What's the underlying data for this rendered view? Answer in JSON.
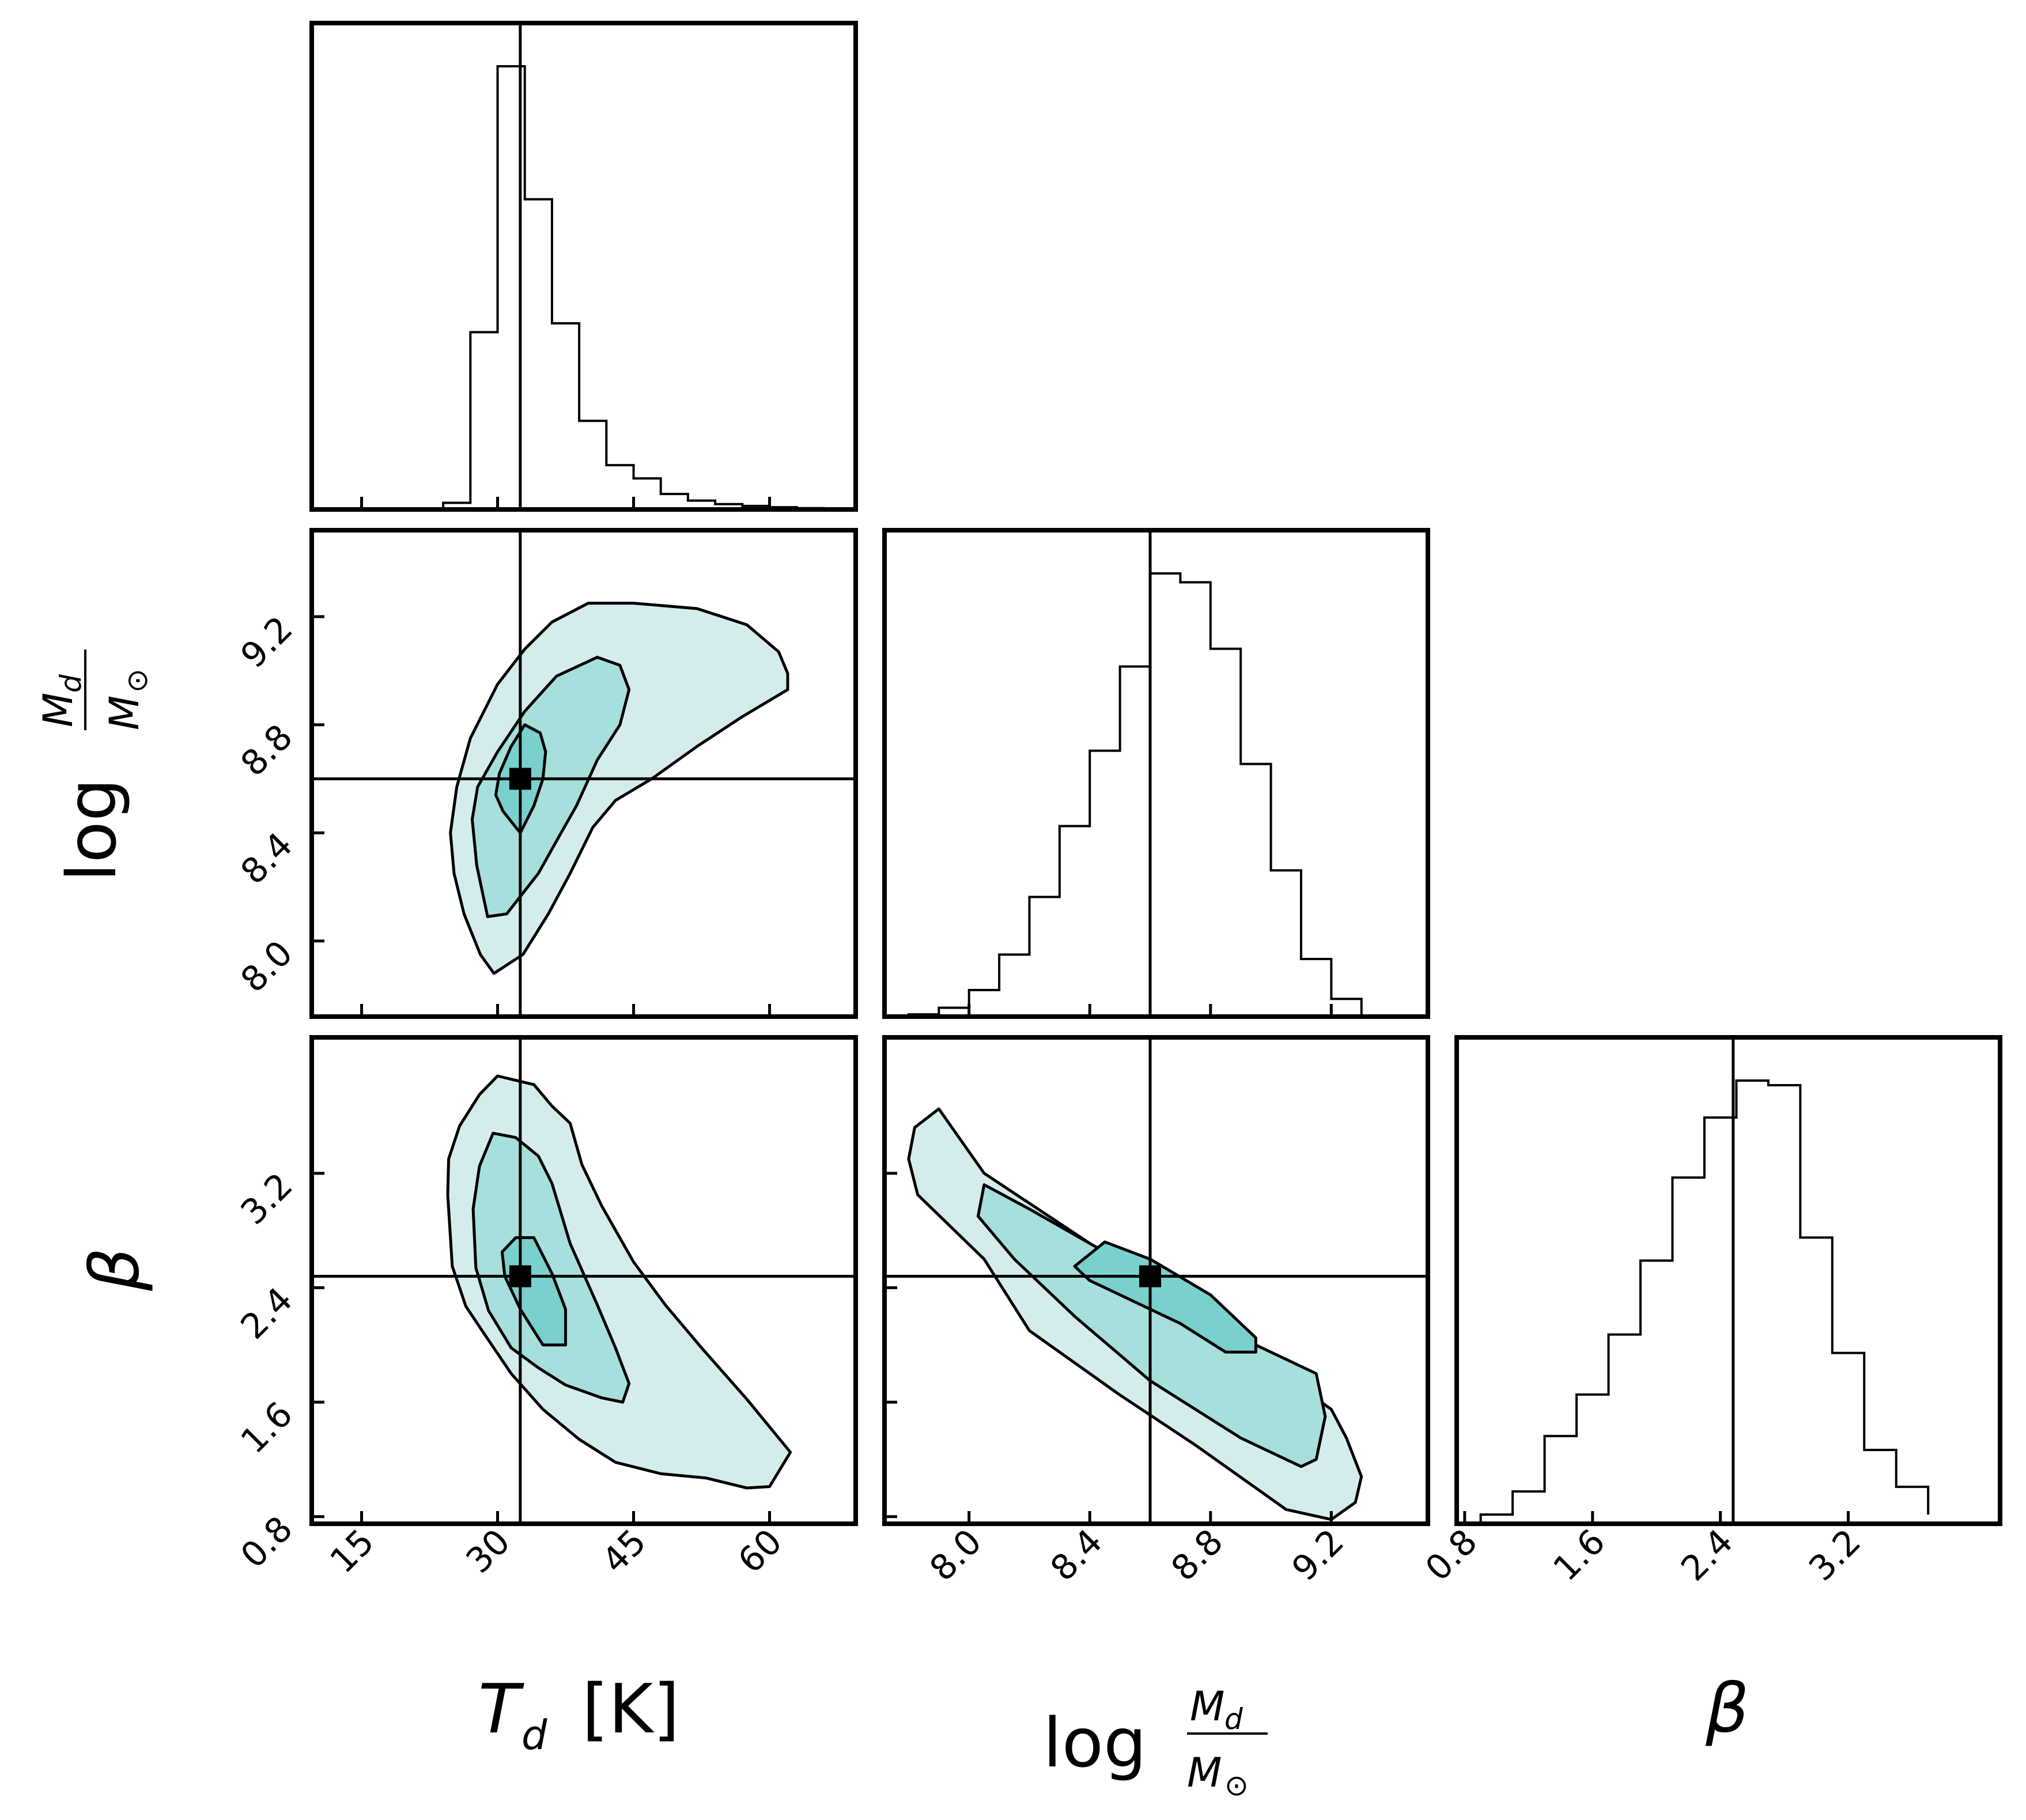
{
  "chart_data": {
    "type": "corner",
    "parameters": [
      {
        "name": "T_d",
        "label": "T",
        "label_sub": "d",
        "label_unit": "[K]",
        "range": [
          9.5,
          69.5
        ],
        "ticks": [
          15,
          30,
          45,
          60
        ],
        "tick_labels": [
          "15",
          "30",
          "45",
          "60"
        ],
        "truth": 32.5
      },
      {
        "name": "log_Md",
        "label_prefix": "log",
        "frac_num": "M",
        "frac_num_sub": "d",
        "frac_den": "M",
        "frac_den_sub": "⊙",
        "range": [
          7.72,
          9.52
        ],
        "ticks": [
          8.0,
          8.4,
          8.8,
          9.2
        ],
        "tick_labels": [
          "8.0",
          "8.4",
          "8.8",
          "9.2"
        ],
        "truth": 8.6
      },
      {
        "name": "beta",
        "label": "β",
        "range": [
          0.75,
          4.15
        ],
        "ticks": [
          0.8,
          1.6,
          2.4,
          3.2
        ],
        "tick_labels": [
          "0.8",
          "1.6",
          "2.4",
          "3.2"
        ],
        "truth": 2.48
      }
    ],
    "histograms": {
      "T_d": {
        "bin_edges": [
          24,
          27,
          30,
          33,
          36,
          39,
          42,
          45,
          48,
          51,
          54,
          57,
          60,
          63,
          66,
          69
        ],
        "counts": [
          0.015,
          0.4,
          1.0,
          0.7,
          0.42,
          0.2,
          0.1,
          0.07,
          0.035,
          0.02,
          0.012,
          0.008,
          0.005,
          0.003,
          0.001
        ]
      },
      "log_Md": {
        "bin_edges": [
          7.8,
          7.9,
          8.0,
          8.1,
          8.2,
          8.3,
          8.4,
          8.5,
          8.6,
          8.7,
          8.8,
          8.9,
          9.0,
          9.1,
          9.2,
          9.3
        ],
        "counts": [
          0.005,
          0.02,
          0.06,
          0.14,
          0.27,
          0.43,
          0.6,
          0.79,
          1.0,
          0.98,
          0.83,
          0.57,
          0.33,
          0.13,
          0.04
        ]
      },
      "beta": {
        "bin_edges": [
          0.9,
          1.1,
          1.3,
          1.5,
          1.7,
          1.9,
          2.1,
          2.3,
          2.5,
          2.7,
          2.9,
          3.1,
          3.3,
          3.5,
          3.7
        ],
        "counts": [
          0.02,
          0.07,
          0.19,
          0.28,
          0.41,
          0.57,
          0.75,
          0.88,
          0.96,
          0.95,
          0.62,
          0.37,
          0.16,
          0.08,
          0.02
        ]
      }
    },
    "contours": {
      "log_Md_vs_T_d": [
        [
          [
            24.8,
            8.4
          ],
          [
            25.2,
            8.25
          ],
          [
            26.3,
            8.1
          ],
          [
            28.1,
            7.95
          ],
          [
            29.6,
            7.88
          ],
          [
            32.8,
            7.95
          ],
          [
            35.6,
            8.1
          ],
          [
            38.0,
            8.25
          ],
          [
            40.5,
            8.42
          ],
          [
            43.0,
            8.52
          ],
          [
            47.0,
            8.6
          ],
          [
            52.0,
            8.72
          ],
          [
            57.0,
            8.83
          ],
          [
            62.0,
            8.93
          ],
          [
            62.0,
            8.99
          ],
          [
            61.0,
            9.07
          ],
          [
            57.5,
            9.17
          ],
          [
            52.0,
            9.23
          ],
          [
            45.0,
            9.25
          ],
          [
            40.0,
            9.25
          ],
          [
            36.0,
            9.18
          ],
          [
            33.0,
            9.08
          ],
          [
            30.0,
            8.95
          ],
          [
            27.0,
            8.75
          ],
          [
            25.5,
            8.57
          ]
        ],
        [
          [
            27.2,
            8.45
          ],
          [
            27.7,
            8.28
          ],
          [
            28.9,
            8.09
          ],
          [
            31.0,
            8.1
          ],
          [
            34.5,
            8.25
          ],
          [
            37.0,
            8.4
          ],
          [
            38.7,
            8.5
          ],
          [
            41.0,
            8.67
          ],
          [
            43.5,
            8.8
          ],
          [
            44.5,
            8.93
          ],
          [
            43.5,
            9.02
          ],
          [
            41.0,
            9.05
          ],
          [
            36.5,
            8.98
          ],
          [
            33.0,
            8.85
          ],
          [
            30.0,
            8.7
          ],
          [
            27.8,
            8.57
          ]
        ],
        [
          [
            29.8,
            8.54
          ],
          [
            30.6,
            8.48
          ],
          [
            32.5,
            8.4
          ],
          [
            34.0,
            8.5
          ],
          [
            35.0,
            8.6
          ],
          [
            35.3,
            8.7
          ],
          [
            34.7,
            8.77
          ],
          [
            33.0,
            8.8
          ],
          [
            31.5,
            8.72
          ],
          [
            30.2,
            8.62
          ]
        ]
      ],
      "beta_vs_T_d": [
        [
          [
            24.5,
            3.05
          ],
          [
            25.0,
            2.55
          ],
          [
            26.5,
            2.27
          ],
          [
            28.5,
            2.08
          ],
          [
            31.5,
            1.8
          ],
          [
            35.0,
            1.55
          ],
          [
            39.0,
            1.34
          ],
          [
            43.0,
            1.18
          ],
          [
            48.0,
            1.1
          ],
          [
            53.0,
            1.07
          ],
          [
            57.5,
            1.0
          ],
          [
            60.0,
            1.01
          ],
          [
            62.3,
            1.25
          ],
          [
            57.5,
            1.62
          ],
          [
            52.5,
            1.98
          ],
          [
            48.5,
            2.28
          ],
          [
            45.0,
            2.58
          ],
          [
            41.5,
            2.97
          ],
          [
            39.3,
            3.26
          ],
          [
            38.0,
            3.55
          ],
          [
            36.0,
            3.67
          ],
          [
            34.0,
            3.82
          ],
          [
            30.0,
            3.88
          ],
          [
            28.0,
            3.75
          ],
          [
            25.8,
            3.53
          ],
          [
            24.6,
            3.3
          ]
        ],
        [
          [
            27.3,
            2.95
          ],
          [
            27.6,
            2.54
          ],
          [
            29.0,
            2.24
          ],
          [
            31.5,
            1.98
          ],
          [
            34.5,
            1.84
          ],
          [
            37.5,
            1.72
          ],
          [
            41.5,
            1.63
          ],
          [
            43.8,
            1.6
          ],
          [
            44.5,
            1.73
          ],
          [
            43.0,
            1.98
          ],
          [
            41.0,
            2.28
          ],
          [
            38.0,
            2.71
          ],
          [
            36.0,
            3.13
          ],
          [
            34.5,
            3.32
          ],
          [
            32.0,
            3.45
          ],
          [
            29.5,
            3.48
          ],
          [
            28.0,
            3.25
          ]
        ],
        [
          [
            30.5,
            2.65
          ],
          [
            30.8,
            2.48
          ],
          [
            32.5,
            2.25
          ],
          [
            35.0,
            2.0
          ],
          [
            37.5,
            2.0
          ],
          [
            37.5,
            2.25
          ],
          [
            36.0,
            2.5
          ],
          [
            34.0,
            2.75
          ],
          [
            32.0,
            2.75
          ]
        ]
      ],
      "beta_vs_log_Md": [
        [
          [
            7.9,
            3.65
          ],
          [
            8.05,
            3.2
          ],
          [
            8.3,
            2.85
          ],
          [
            8.55,
            2.5
          ],
          [
            8.8,
            2.15
          ],
          [
            9.0,
            1.85
          ],
          [
            9.2,
            1.55
          ],
          [
            9.25,
            1.35
          ],
          [
            9.3,
            1.08
          ],
          [
            9.28,
            0.9
          ],
          [
            9.2,
            0.78
          ],
          [
            9.05,
            0.85
          ],
          [
            8.95,
            1.0
          ],
          [
            8.75,
            1.3
          ],
          [
            8.5,
            1.65
          ],
          [
            8.2,
            2.1
          ],
          [
            8.05,
            2.6
          ],
          [
            7.83,
            3.05
          ],
          [
            7.8,
            3.3
          ],
          [
            7.82,
            3.52
          ]
        ],
        [
          [
            8.05,
            3.12
          ],
          [
            8.2,
            2.95
          ],
          [
            8.45,
            2.65
          ],
          [
            8.7,
            2.35
          ],
          [
            8.95,
            2.0
          ],
          [
            9.15,
            1.8
          ],
          [
            9.18,
            1.5
          ],
          [
            9.15,
            1.2
          ],
          [
            9.1,
            1.15
          ],
          [
            8.9,
            1.35
          ],
          [
            8.6,
            1.75
          ],
          [
            8.35,
            2.2
          ],
          [
            8.15,
            2.6
          ],
          [
            8.03,
            2.9
          ]
        ],
        [
          [
            8.35,
            2.55
          ],
          [
            8.45,
            2.72
          ],
          [
            8.6,
            2.6
          ],
          [
            8.8,
            2.35
          ],
          [
            8.95,
            2.05
          ],
          [
            8.95,
            1.95
          ],
          [
            8.85,
            1.95
          ],
          [
            8.7,
            2.15
          ],
          [
            8.5,
            2.35
          ],
          [
            8.4,
            2.45
          ]
        ]
      ]
    },
    "axis_titles": {
      "x": [
        "T_d [K]",
        "log Md/M⊙",
        "β"
      ],
      "y": [
        "log Md/M⊙",
        "β"
      ]
    },
    "colors": {
      "fill_levels": [
        "#d4ecec",
        "#a6dfdc",
        "#79d0cd"
      ],
      "line": "#000000"
    }
  }
}
